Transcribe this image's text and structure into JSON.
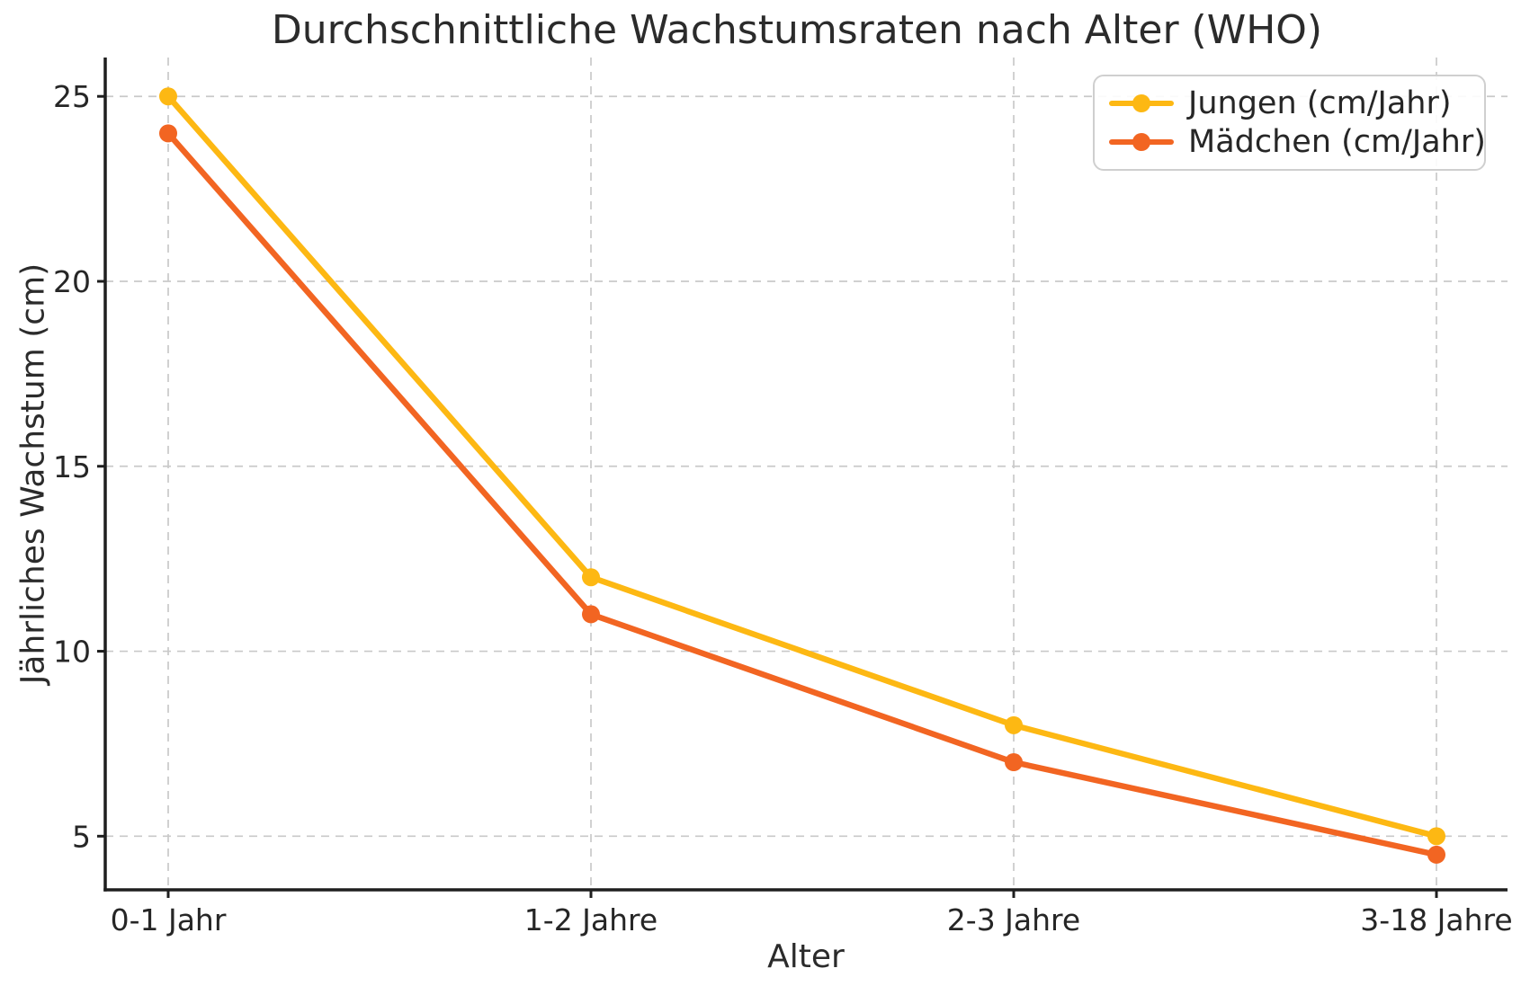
{
  "chart_data": {
    "type": "line",
    "title": "Durchschnittliche Wachstumsraten nach Alter (WHO)",
    "xlabel": "Alter",
    "ylabel": "Jährliches Wachstum (cm)",
    "categories": [
      "0-1 Jahr",
      "1-2 Jahre",
      "2-3 Jahre",
      "3-18 Jahre"
    ],
    "series": [
      {
        "name": "Jungen (cm/Jahr)",
        "color": "#FDB813",
        "values": [
          25,
          12,
          8,
          5
        ]
      },
      {
        "name": "Mädchen (cm/Jahr)",
        "color": "#F26522",
        "values": [
          24,
          11,
          7,
          4.5
        ]
      }
    ],
    "yticks": [
      5,
      10,
      15,
      20,
      25
    ],
    "ylim": [
      3.55,
      26.05
    ],
    "grid": true,
    "grid_style": "dashed",
    "legend_position": "upper right",
    "marker": "circle",
    "colors": {
      "background": "#ffffff",
      "grid": "#c9c9c9",
      "spine": "#1f1f1f",
      "tick_text": "#262626",
      "title_text": "#2b2b2b"
    }
  }
}
